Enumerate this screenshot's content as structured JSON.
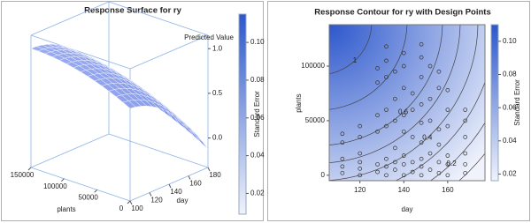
{
  "chart_data": [
    {
      "type": "surface",
      "title": "Response Surface for ry",
      "xlabel": "day",
      "ylabel": "plants",
      "zlabel": "Predicted Value",
      "xlim": [
        100,
        180
      ],
      "xticks": [
        100,
        120,
        140,
        160,
        180
      ],
      "ylim": [
        0,
        150000
      ],
      "yticks": [
        0,
        50000,
        100000,
        150000
      ],
      "zlim": [
        -0.33,
        1.15
      ],
      "zticks": [
        {
          "value": 0,
          "label": "0.0"
        },
        {
          "value": 0.5,
          "label": "0.5"
        },
        {
          "value": 1,
          "label": "1.0"
        }
      ],
      "colorbar_label": "Standard Error",
      "clim": [
        0.009,
        0.115
      ],
      "cticks": [
        0.02,
        0.04,
        0.06,
        0.08,
        {
          "value": 0.1,
          "label": "0.10"
        }
      ],
      "colors": [
        "#f0f3fc",
        "#2c57cc"
      ],
      "surface_color": "#6f86e4"
    },
    {
      "type": "contour",
      "title": "Response Contour for ry with Design Points",
      "xlabel": "day",
      "ylabel": "plants",
      "xlim": [
        106,
        177
      ],
      "xticks": [
        120,
        140,
        160
      ],
      "ylim": [
        -5000,
        138000
      ],
      "yticks": [
        0,
        50000,
        100000
      ],
      "contour_levels": [
        1,
        0.6,
        0.4,
        0.2
      ],
      "colorbar_label": "Standard Error",
      "clim": [
        0.016,
        0.11
      ],
      "cticks": [
        0.02,
        0.04,
        0.06,
        0.08,
        {
          "value": 0.1,
          "label": "0.10"
        }
      ],
      "colors": [
        "#f0f3fc",
        "#2c57cc"
      ],
      "point_color": "#333333",
      "x": [
        112,
        112,
        112,
        112,
        112,
        120,
        120,
        120,
        120,
        120,
        120,
        128,
        128,
        128,
        128,
        128,
        128,
        132,
        132,
        132,
        132,
        132,
        132,
        132,
        132,
        136,
        136,
        136,
        136,
        136,
        136,
        140,
        140,
        140,
        140,
        140,
        140,
        140,
        140,
        144,
        144,
        144,
        144,
        144,
        148,
        148,
        148,
        148,
        148,
        148,
        148,
        148,
        148,
        152,
        152,
        152,
        152,
        152,
        156,
        156,
        156,
        156,
        156,
        156,
        160,
        160,
        160,
        160,
        160,
        160,
        168,
        168,
        168,
        168,
        168,
        168
      ],
      "values": [
        2000,
        8000,
        15000,
        30000,
        38000,
        0,
        6000,
        12000,
        20000,
        35000,
        45000,
        3000,
        10000,
        40000,
        55000,
        85000,
        98000,
        0,
        8000,
        15000,
        45000,
        60000,
        90000,
        105000,
        118000,
        5000,
        12000,
        25000,
        50000,
        70000,
        95000,
        0,
        10000,
        18000,
        40000,
        55000,
        80000,
        100000,
        112000,
        3000,
        12000,
        35000,
        60000,
        75000,
        0,
        8000,
        15000,
        30000,
        48000,
        65000,
        90000,
        108000,
        120000,
        5000,
        20000,
        50000,
        70000,
        100000,
        2000,
        12000,
        28000,
        42000,
        80000,
        95000,
        0,
        10000,
        18000,
        45000,
        60000,
        78000,
        2000,
        10000,
        20000,
        35000,
        50000,
        60000
      ]
    }
  ]
}
